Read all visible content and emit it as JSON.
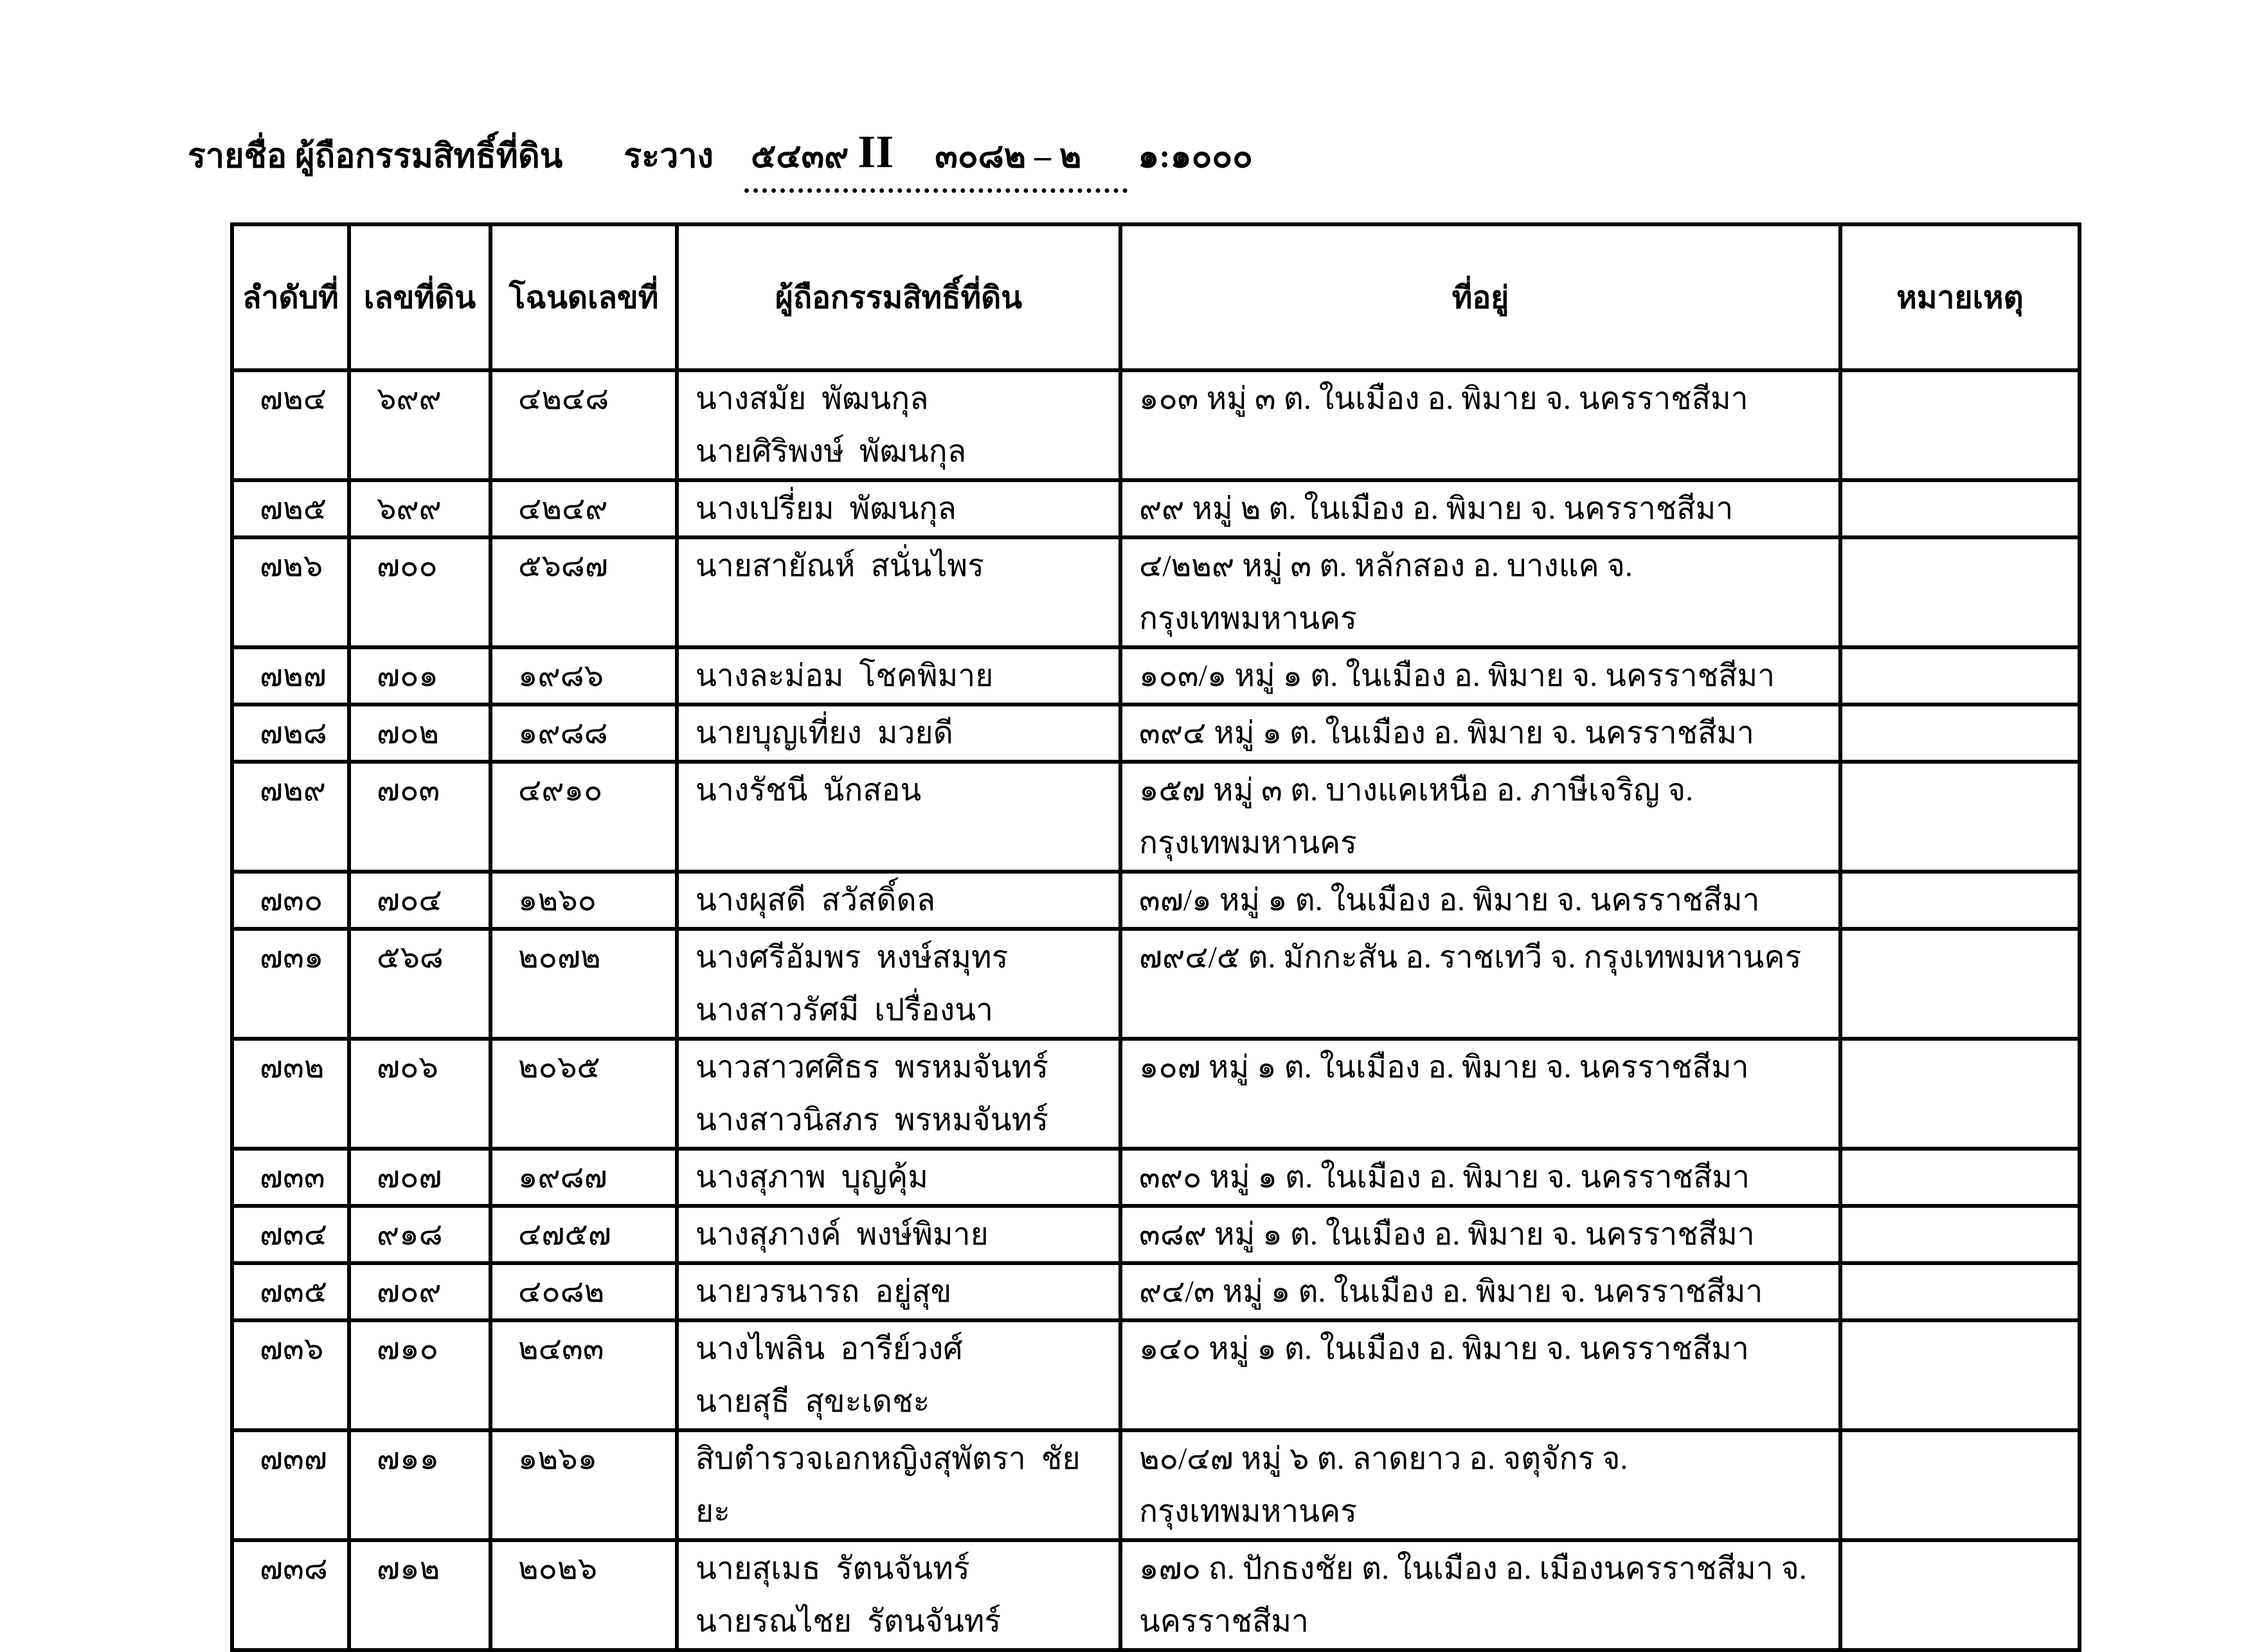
{
  "header": {
    "title": "รายชื่อ ผู้ถือกรรมสิทธิ์ที่ดิน",
    "sheet_label": "ระวาง",
    "sheet_no": "๕๔๓๙",
    "sheet_roman": "II",
    "sheet_ref": "๓๐๘๒ – ๒",
    "scale": "๑:๑๐๐๐"
  },
  "table": {
    "columns": [
      "ลำดับที่",
      "เลขที่ดิน",
      "โฉนดเลขที่",
      "ผู้ถือกรรมสิทธิ์ที่ดิน",
      "ที่อยู่",
      "หมายเหตุ"
    ],
    "rows": [
      {
        "seq": "๗๒๔",
        "land_no": "๖๙๙",
        "deed_no": "๔๒๔๘",
        "holders": [
          "นางสมัย  พัฒนกุล",
          "นายศิริพงษ์  พัฒนกุล"
        ],
        "address": [
          "๑๐๓ หมู่ ๓ ต. ในเมือง อ. พิมาย จ. นครราชสีมา"
        ],
        "remark": ""
      },
      {
        "seq": "๗๒๕",
        "land_no": "๖๙๙",
        "deed_no": "๔๒๔๙",
        "holders": [
          "นางเปรี่ยม  พัฒนกุล"
        ],
        "address": [
          "๙๙ หมู่ ๒ ต. ในเมือง อ. พิมาย จ. นครราชสีมา"
        ],
        "remark": ""
      },
      {
        "seq": "๗๒๖",
        "land_no": "๗๐๐",
        "deed_no": "๕๖๘๗",
        "holders": [
          "นายสายัณห์  สนั่นไพร"
        ],
        "address": [
          "๔/๒๒๙ หมู่ ๓ ต. หลักสอง อ. บางแค จ. กรุงเทพมหานคร"
        ],
        "remark": ""
      },
      {
        "seq": "๗๒๗",
        "land_no": "๗๐๑",
        "deed_no": "๑๙๘๖",
        "holders": [
          "นางละม่อม  โชคพิมาย"
        ],
        "address": [
          "๑๐๓/๑ หมู่ ๑ ต. ในเมือง อ. พิมาย จ. นครราชสีมา"
        ],
        "remark": ""
      },
      {
        "seq": "๗๒๘",
        "land_no": "๗๐๒",
        "deed_no": "๑๙๘๘",
        "holders": [
          "นายบุญเที่ยง  มวยดี"
        ],
        "address": [
          "๓๙๔ หมู่ ๑ ต. ในเมือง อ. พิมาย จ. นครราชสีมา"
        ],
        "remark": ""
      },
      {
        "seq": "๗๒๙",
        "land_no": "๗๐๓",
        "deed_no": "๔๙๑๐",
        "holders": [
          "นางรัชนี  นักสอน"
        ],
        "address": [
          "๑๕๗ หมู่ ๓ ต. บางแคเหนือ อ. ภาษีเจริญ จ.",
          "กรุงเทพมหานคร"
        ],
        "remark": ""
      },
      {
        "seq": "๗๓๐",
        "land_no": "๗๐๔",
        "deed_no": "๑๒๖๐",
        "holders": [
          "นางผุสดี  สวัสดิ์ดล"
        ],
        "address": [
          "๓๗/๑ หมู่ ๑ ต. ในเมือง อ. พิมาย จ. นครราชสีมา"
        ],
        "remark": ""
      },
      {
        "seq": "๗๓๑",
        "land_no": "๕๖๘",
        "deed_no": "๒๐๗๒",
        "holders": [
          "นางศรีอัมพร  หงษ์สมุทร",
          "นางสาวรัศมี  เปรื่องนา"
        ],
        "address": [
          "๗๙๔/๕ ต. มักกะสัน อ. ราชเทวี จ. กรุงเทพมหานคร"
        ],
        "remark": ""
      },
      {
        "seq": "๗๓๒",
        "land_no": "๗๐๖",
        "deed_no": "๒๐๖๕",
        "holders": [
          "นาวสาวศศิธร  พรหมจันทร์",
          "นางสาวนิสภร  พรหมจันทร์"
        ],
        "address": [
          "๑๐๗ หมู่ ๑ ต. ในเมือง อ. พิมาย จ. นครราชสีมา"
        ],
        "remark": ""
      },
      {
        "seq": "๗๓๓",
        "land_no": "๗๐๗",
        "deed_no": "๑๙๘๗",
        "holders": [
          "นางสุภาพ  บุญคุ้ม"
        ],
        "address": [
          "๓๙๐ หมู่ ๑ ต. ในเมือง อ. พิมาย จ. นครราชสีมา"
        ],
        "remark": ""
      },
      {
        "seq": "๗๓๔",
        "land_no": "๙๑๘",
        "deed_no": "๔๗๕๗",
        "holders": [
          "นางสุภางค์  พงษ์พิมาย"
        ],
        "address": [
          "๓๘๙ หมู่ ๑ ต. ในเมือง อ. พิมาย จ. นครราชสีมา"
        ],
        "remark": ""
      },
      {
        "seq": "๗๓๕",
        "land_no": "๗๐๙",
        "deed_no": "๔๐๘๒",
        "holders": [
          "นายวรนารถ  อยู่สุข"
        ],
        "address": [
          "๙๔/๓ หมู่ ๑ ต. ในเมือง อ. พิมาย จ. นครราชสีมา"
        ],
        "remark": ""
      },
      {
        "seq": "๗๓๖",
        "land_no": "๗๑๐",
        "deed_no": "๒๔๓๓",
        "holders": [
          "นางไพลิน  อารีย์วงศ์",
          "นายสุธี  สุขะเดชะ"
        ],
        "address": [
          "๑๔๐ หมู่ ๑ ต. ในเมือง อ. พิมาย จ. นครราชสีมา"
        ],
        "remark": ""
      },
      {
        "seq": "๗๓๗",
        "land_no": "๗๑๑",
        "deed_no": "๑๒๖๑",
        "holders": [
          "สิบตำรวจเอกหญิงสุพัตรา  ชัยยะ"
        ],
        "address": [
          "๒๐/๔๗ หมู่ ๖ ต. ลาดยาว อ. จตุจักร จ. กรุงเทพมหานคร"
        ],
        "remark": ""
      },
      {
        "seq": "๗๓๘",
        "land_no": "๗๑๒",
        "deed_no": "๒๐๒๖",
        "holders": [
          "นายสุเมธ  รัตนจันทร์",
          "นายรณไชย  รัตนจันทร์"
        ],
        "address": [
          "๑๗๐ ถ. ปักธงชัย ต. ในเมือง อ. เมืองนครราชสีมา จ.",
          "นครราชสีมา"
        ],
        "remark": ""
      }
    ]
  }
}
